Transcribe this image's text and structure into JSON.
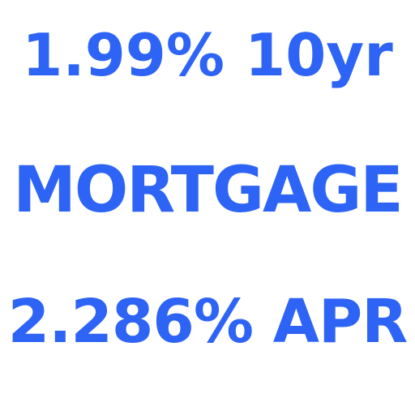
{
  "ad": {
    "rate_line": "1.99% 10yr",
    "product_line": "MORTGAGE",
    "apr_line": "2.286% APR",
    "text_color": "#2e64f5",
    "background_color": "#ffffff"
  }
}
